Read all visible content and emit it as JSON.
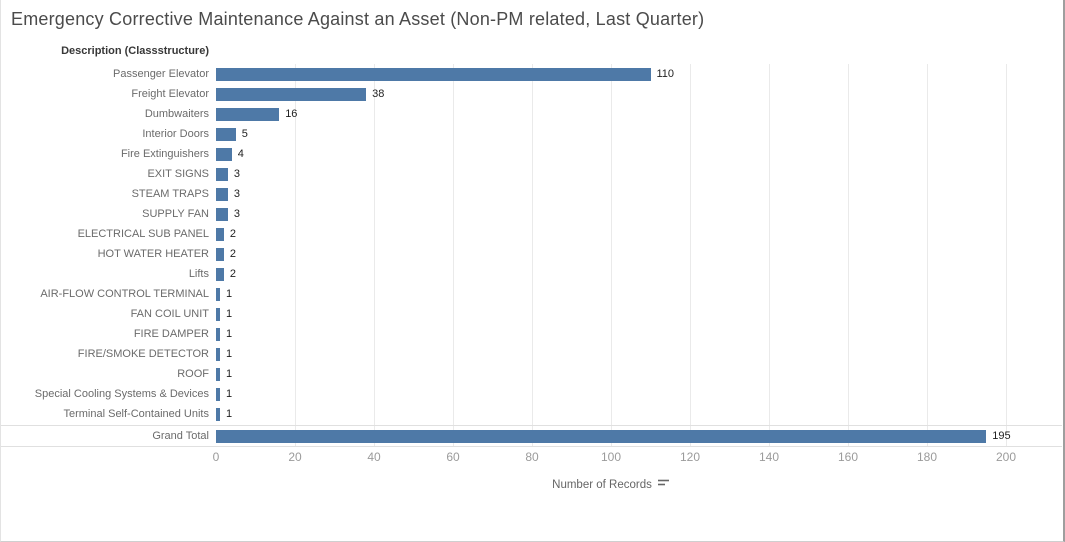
{
  "title": "Emergency Corrective Maintenance Against an Asset (Non-PM related, Last Quarter)",
  "chart_data": {
    "type": "bar",
    "orientation": "horizontal",
    "title": "Emergency Corrective Maintenance Against an Asset (Non-PM related, Last Quarter)",
    "column_header": "Description (Classstructure)",
    "categories": [
      "Passenger Elevator",
      "Freight Elevator",
      "Dumbwaiters",
      "Interior Doors",
      "Fire Extinguishers",
      "EXIT SIGNS",
      "STEAM TRAPS",
      "SUPPLY FAN",
      "ELECTRICAL SUB PANEL",
      "HOT WATER HEATER",
      "Lifts",
      "AIR-FLOW CONTROL TERMINAL",
      "FAN COIL UNIT",
      "FIRE DAMPER",
      "FIRE/SMOKE DETECTOR",
      "ROOF",
      "Special Cooling Systems & Devices",
      "Terminal Self-Contained Units"
    ],
    "values": [
      110,
      38,
      16,
      5,
      4,
      3,
      3,
      3,
      2,
      2,
      2,
      1,
      1,
      1,
      1,
      1,
      1,
      1
    ],
    "grand_total_label": "Grand Total",
    "grand_total_value": 195,
    "xlabel": "Number of Records",
    "x_ticks": [
      0,
      20,
      40,
      60,
      80,
      100,
      120,
      140,
      160,
      180,
      200
    ],
    "xlim": [
      0,
      200
    ],
    "bar_color": "#4e79a7",
    "grid": true,
    "legend": "none",
    "sort_icon": "sort-descending-icon"
  }
}
